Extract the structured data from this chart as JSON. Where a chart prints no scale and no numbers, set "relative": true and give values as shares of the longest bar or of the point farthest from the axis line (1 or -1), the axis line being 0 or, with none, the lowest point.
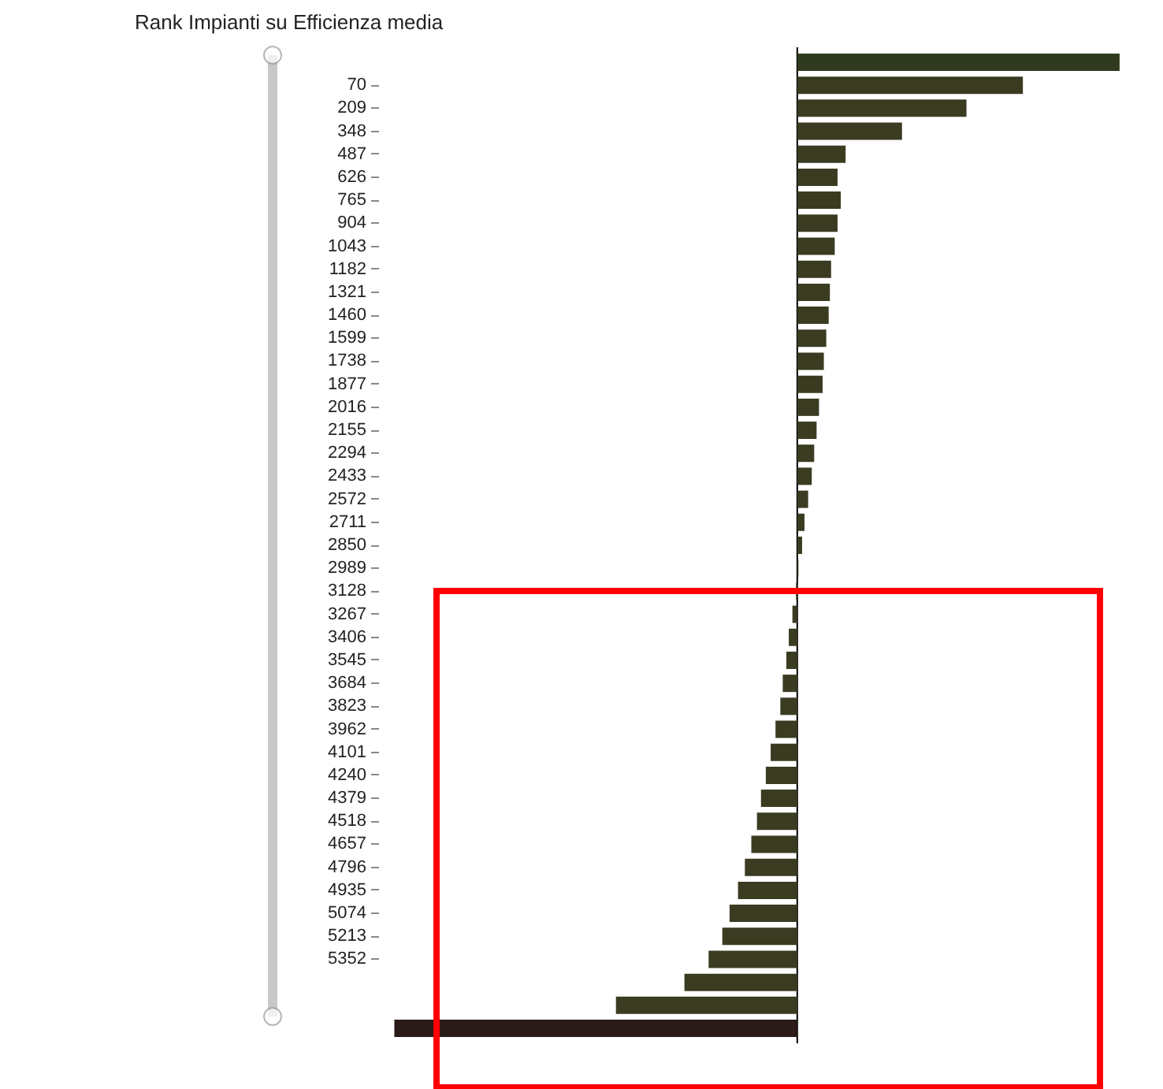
{
  "chart_data": {
    "type": "bar",
    "orientation": "horizontal",
    "relative": true,
    "title": "Rank Impianti su Efficienza media",
    "categories": [
      null,
      "70",
      "209",
      "348",
      "487",
      "626",
      "765",
      "904",
      "1043",
      "1182",
      "1321",
      "1460",
      "1599",
      "1738",
      "1877",
      "2016",
      "2155",
      "2294",
      "2433",
      "2572",
      "2711",
      "2850",
      "2989",
      "3128",
      "3267",
      "3406",
      "3545",
      "3684",
      "3823",
      "3962",
      "4101",
      "4240",
      "4379",
      "4518",
      "4657",
      "4796",
      "4935",
      "5074",
      "5213",
      "5352",
      null,
      null,
      null
    ],
    "values": [
      0.8,
      0.56,
      0.42,
      0.26,
      0.12,
      0.1,
      0.108,
      0.1,
      0.093,
      0.084,
      0.081,
      0.078,
      0.072,
      0.066,
      0.063,
      0.054,
      0.048,
      0.042,
      0.036,
      0.027,
      0.018,
      0.012,
      0.003,
      -0.003,
      -0.012,
      -0.021,
      -0.027,
      -0.036,
      -0.042,
      -0.054,
      -0.066,
      -0.078,
      -0.09,
      -0.1,
      -0.114,
      -0.13,
      -0.147,
      -0.168,
      -0.186,
      -0.22,
      -0.28,
      -0.45,
      -1
    ],
    "colors": [
      "#2f3a1e",
      "#3b3b22",
      "#3b3b22",
      "#3b3b22",
      "#3b3b22",
      "#3b3b22",
      "#3b3b22",
      "#3b3b22",
      "#3b3b22",
      "#3b3b22",
      "#3b3b22",
      "#3b3b22",
      "#3b3b22",
      "#3b3b22",
      "#3b3b22",
      "#3b3b22",
      "#3b3b22",
      "#3b3b22",
      "#3b3b22",
      "#3b3b22",
      "#3b3b22",
      "#3b3b22",
      "#3b3b22",
      "#3b3b22",
      "#3b3b22",
      "#3b3b22",
      "#3b3b22",
      "#3b3b22",
      "#3b3b22",
      "#3b3b22",
      "#3b3b22",
      "#3b3b22",
      "#3b3b22",
      "#3b3b22",
      "#3b3b22",
      "#3b3b22",
      "#3b3b22",
      "#3b3b22",
      "#3b3b22",
      "#3b3b22",
      "#3b3b22",
      "#3b3b22",
      "#2a1a18"
    ],
    "tick_labels": "y"
  }
}
